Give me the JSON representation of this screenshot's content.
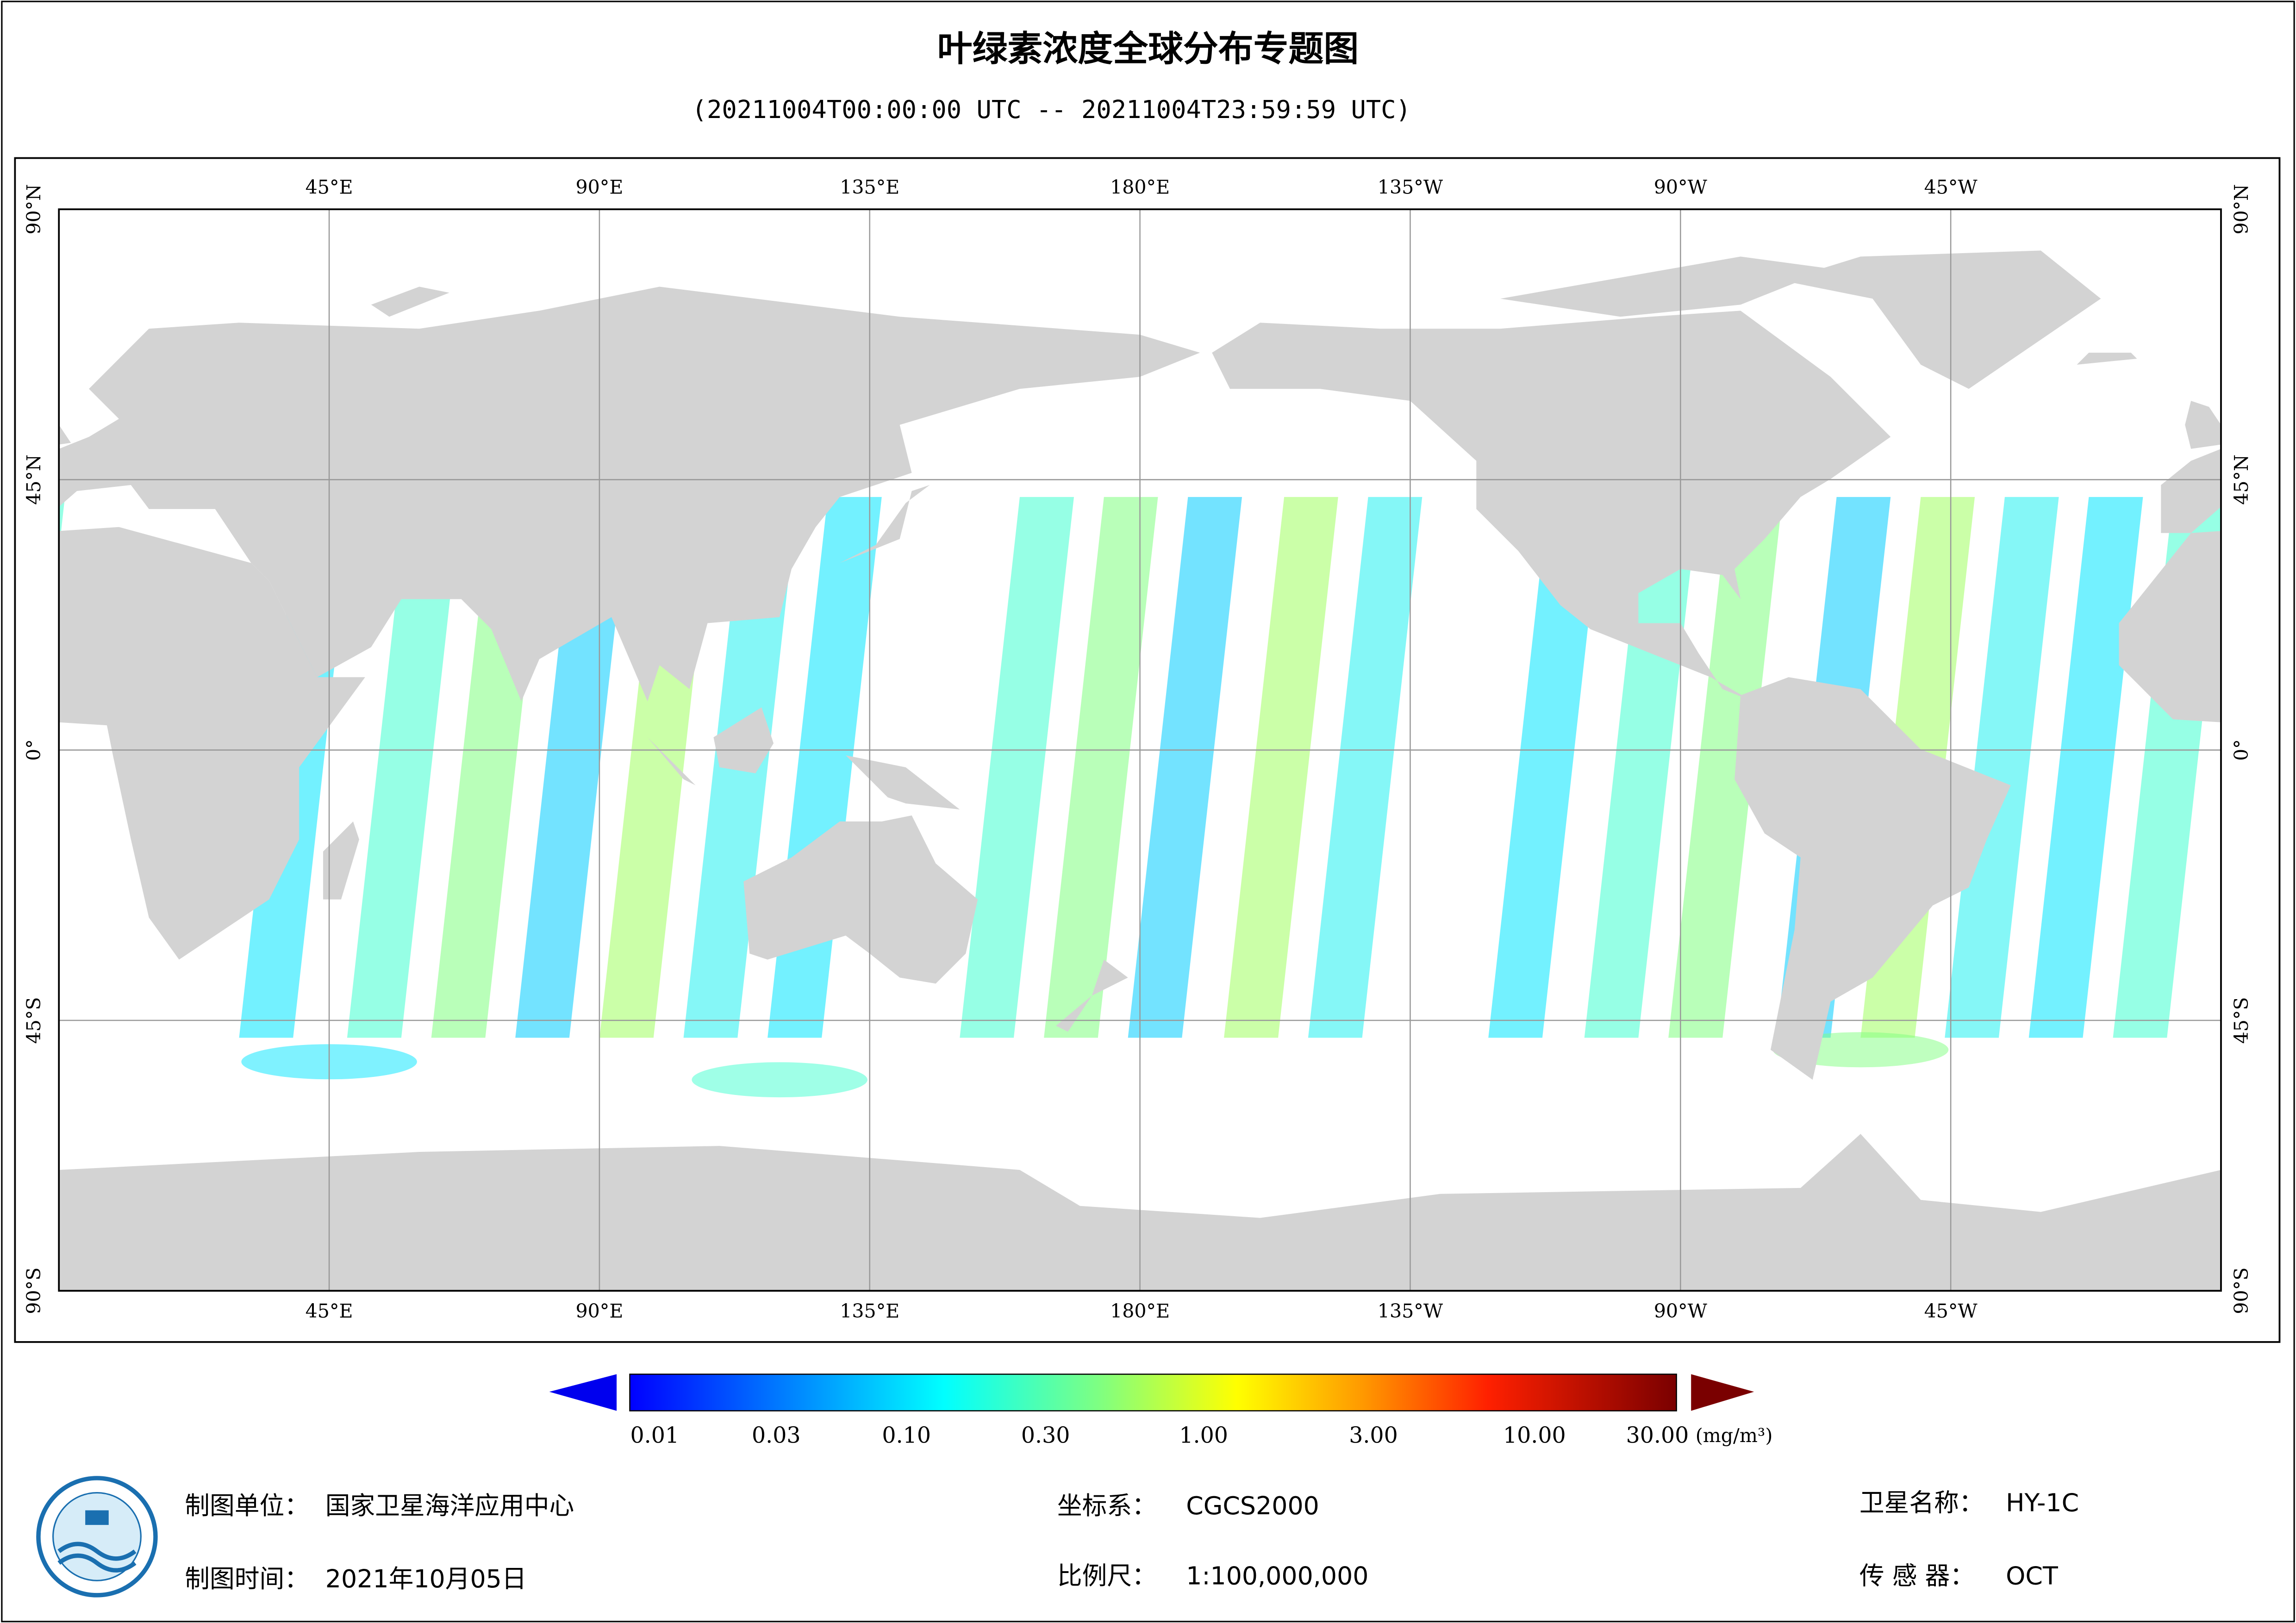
{
  "header": {
    "title": "叶绿素浓度全球分布专题图",
    "subtitle": "(20211004T00:00:00 UTC -- 20211004T23:59:59 UTC)"
  },
  "map": {
    "lon_labels": [
      "45°E",
      "90°E",
      "135°E",
      "180°E",
      "135°W",
      "90°W",
      "45°W"
    ],
    "lat_labels": [
      "90°N",
      "45°N",
      "0°",
      "45°S",
      "90°S"
    ]
  },
  "colorbar": {
    "ticks": [
      "0.01",
      "0.03",
      "0.10",
      "0.30",
      "1.00",
      "3.00",
      "10.00",
      "30.00"
    ],
    "unit": "(mg/m³)"
  },
  "footer": {
    "items": [
      {
        "label": "制图单位：",
        "value": "国家卫星海洋应用中心"
      },
      {
        "label": "制图时间：",
        "value": "2021年10月05日"
      },
      {
        "label": "坐标系：",
        "value": "CGCS2000"
      },
      {
        "label": "比例尺：",
        "value": "1:100,000,000"
      },
      {
        "label": "卫星名称：",
        "value": "HY-1C"
      },
      {
        "label": "传 感 器：",
        "value": "OCT"
      }
    ]
  }
}
